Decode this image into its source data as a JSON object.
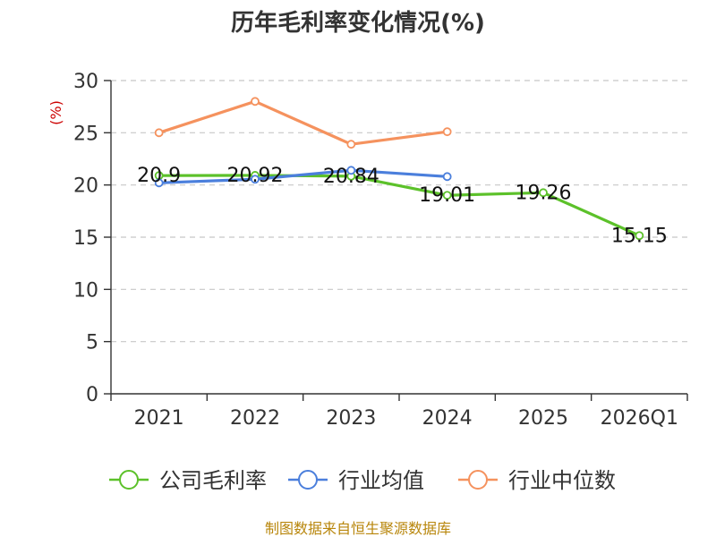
{
  "chart_data": {
    "type": "line",
    "title": "历年毛利率变化情况(%)",
    "ylabel": "(%)",
    "xlabel": "",
    "categories": [
      "2021",
      "2022",
      "2023",
      "2024",
      "2025",
      "2026Q1"
    ],
    "ylim": [
      0,
      30
    ],
    "yticks": [
      0,
      5,
      10,
      15,
      20,
      25,
      30
    ],
    "grid": true,
    "legend_position": "bottom",
    "series": [
      {
        "name": "公司毛利率",
        "color": "#5cc12a",
        "values": [
          20.9,
          20.92,
          20.84,
          19.01,
          19.26,
          15.15
        ],
        "labels": [
          "20.9",
          "20.92",
          "20.84",
          "19.01",
          "19.26",
          "15.15"
        ],
        "show_labels": true
      },
      {
        "name": "行业均值",
        "color": "#4b7fdc",
        "values": [
          20.2,
          20.55,
          21.4,
          20.8,
          null,
          null
        ],
        "show_labels": false
      },
      {
        "name": "行业中位数",
        "color": "#f5925e",
        "values": [
          25.0,
          28.0,
          23.9,
          25.1,
          null,
          null
        ],
        "show_labels": false
      }
    ]
  },
  "footer": {
    "source": "制图数据来自恒生聚源数据库"
  }
}
